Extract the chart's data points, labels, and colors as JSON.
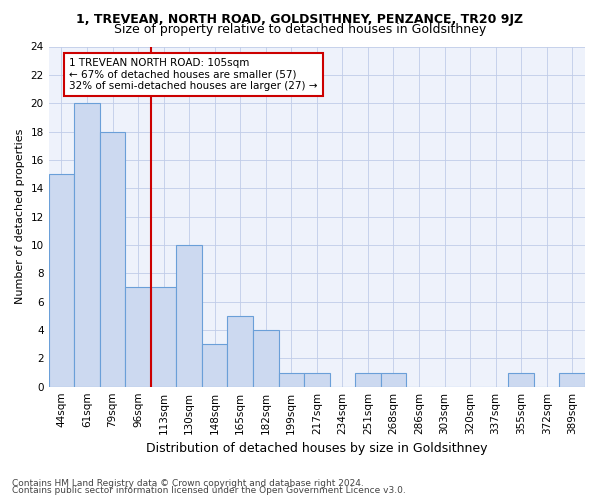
{
  "title": "1, TREVEAN, NORTH ROAD, GOLDSITHNEY, PENZANCE, TR20 9JZ",
  "subtitle": "Size of property relative to detached houses in Goldsithney",
  "xlabel": "Distribution of detached houses by size in Goldsithney",
  "ylabel": "Number of detached properties",
  "categories": [
    "44sqm",
    "61sqm",
    "79sqm",
    "96sqm",
    "113sqm",
    "130sqm",
    "148sqm",
    "165sqm",
    "182sqm",
    "199sqm",
    "217sqm",
    "234sqm",
    "251sqm",
    "268sqm",
    "286sqm",
    "303sqm",
    "320sqm",
    "337sqm",
    "355sqm",
    "372sqm",
    "389sqm"
  ],
  "values": [
    15,
    20,
    18,
    7,
    7,
    10,
    3,
    5,
    4,
    1,
    1,
    0,
    1,
    1,
    0,
    0,
    0,
    0,
    1,
    0,
    1
  ],
  "bar_color": "#ccd9f0",
  "bar_edgecolor": "#6a9fd8",
  "red_line_index": 4,
  "red_line_color": "#cc0000",
  "annotation_text": "1 TREVEAN NORTH ROAD: 105sqm\n← 67% of detached houses are smaller (57)\n32% of semi-detached houses are larger (27) →",
  "annotation_box_edgecolor": "#cc0000",
  "annotation_box_facecolor": "#ffffff",
  "footnote1": "Contains HM Land Registry data © Crown copyright and database right 2024.",
  "footnote2": "Contains public sector information licensed under the Open Government Licence v3.0.",
  "ylim": [
    0,
    24
  ],
  "yticks": [
    0,
    2,
    4,
    6,
    8,
    10,
    12,
    14,
    16,
    18,
    20,
    22,
    24
  ],
  "background_color": "#eef2fb",
  "grid_color": "#c0cce8",
  "title_fontsize": 9,
  "subtitle_fontsize": 9,
  "ylabel_fontsize": 8,
  "xlabel_fontsize": 9,
  "tick_fontsize": 7.5,
  "annotation_fontsize": 7.5,
  "footnote_fontsize": 6.5
}
